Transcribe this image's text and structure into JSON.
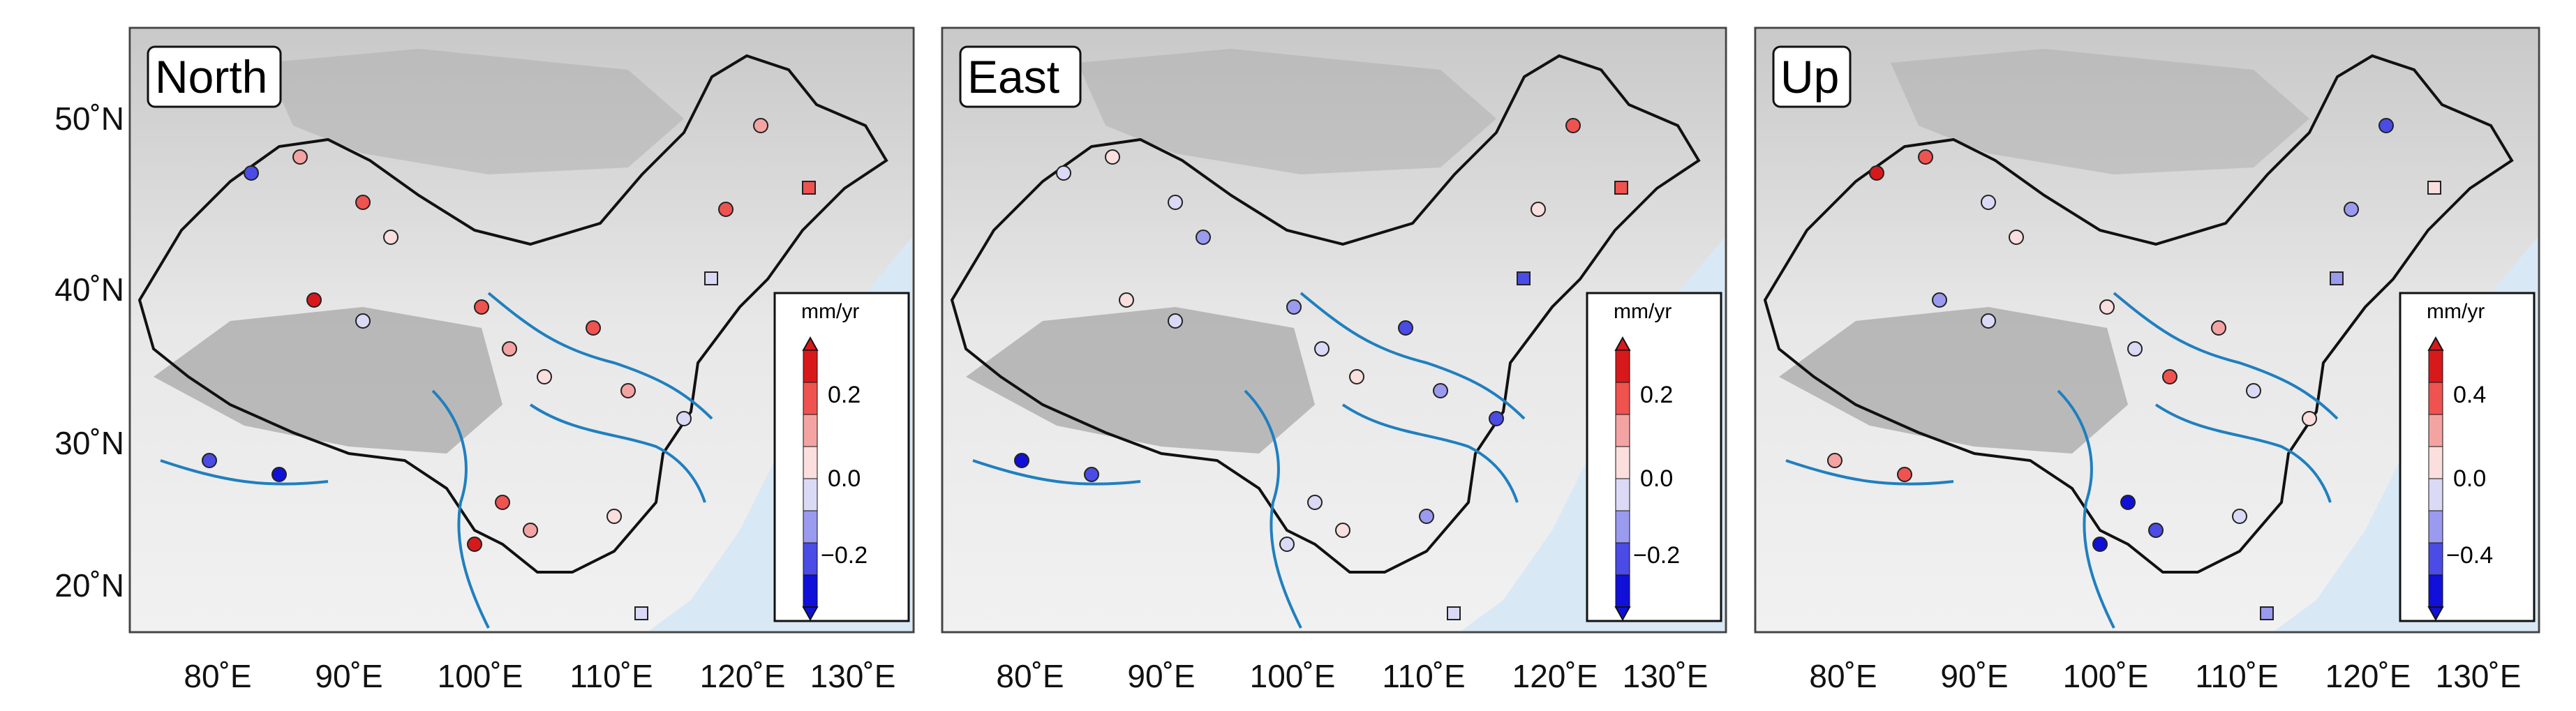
{
  "panels": [
    {
      "id": "north",
      "title": "North",
      "colorbar": {
        "unit": "mm/yr",
        "ticks": [
          "0.2",
          "0.0",
          "−0.2"
        ]
      }
    },
    {
      "id": "east",
      "title": "East",
      "colorbar": {
        "unit": "mm/yr",
        "ticks": [
          "0.2",
          "0.0",
          "−0.2"
        ]
      }
    },
    {
      "id": "up",
      "title": "Up",
      "colorbar": {
        "unit": "mm/yr",
        "ticks": [
          "0.4",
          "0.0",
          "−0.4"
        ]
      }
    }
  ],
  "axes": {
    "y_labels": [
      "50˚N",
      "40˚N",
      "30˚N",
      "20˚N"
    ],
    "x_labels": [
      "80˚E",
      "90˚E",
      "100˚E",
      "110˚E",
      "120˚E",
      "130˚E"
    ]
  },
  "colors": {
    "colorbar_classes": [
      "#d7191c",
      "#ef5350",
      "#f4a3a3",
      "#fbdede",
      "#dadaf6",
      "#9a9aee",
      "#4b4be6",
      "#1010d8"
    ],
    "river": "#1f7fbf",
    "sea": "#d8e8f5",
    "border": "#111111"
  }
}
